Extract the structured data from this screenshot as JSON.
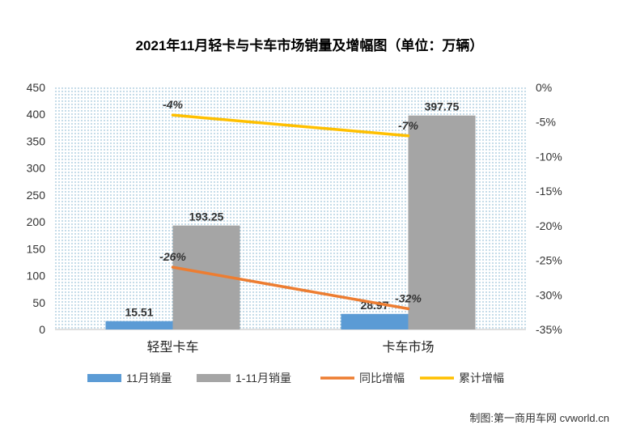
{
  "chart_data": {
    "type": "bar",
    "title": "2021年11月轻卡与卡车市场销量及增幅图（单位：万辆）",
    "categories": [
      "轻型卡车",
      "卡车市场"
    ],
    "series": [
      {
        "name": "11月销量",
        "kind": "bar",
        "axis": "left",
        "values": [
          15.51,
          28.97
        ],
        "labels": [
          "15.51",
          "28.97"
        ],
        "color": "#5B9BD5"
      },
      {
        "name": "1-11月销量",
        "kind": "bar",
        "axis": "left",
        "values": [
          193.25,
          397.75
        ],
        "labels": [
          "193.25",
          "397.75"
        ],
        "color": "#A5A5A5"
      },
      {
        "name": "同比增幅",
        "kind": "line",
        "axis": "right",
        "values": [
          -26,
          -32
        ],
        "labels": [
          "-26%",
          "-32%"
        ],
        "color": "#ED7D31"
      },
      {
        "name": "累计增幅",
        "kind": "line",
        "axis": "right",
        "values": [
          -4,
          -7
        ],
        "labels": [
          "-4%",
          "-7%"
        ],
        "color": "#FFC000"
      }
    ],
    "y_left": {
      "range": [
        0,
        450
      ],
      "ticks": [
        "0",
        "50",
        "100",
        "150",
        "200",
        "250",
        "300",
        "350",
        "400",
        "450"
      ]
    },
    "y_right": {
      "range": [
        -35,
        0
      ],
      "ticks": [
        "0%",
        "-5%",
        "-10%",
        "-15%",
        "-20%",
        "-25%",
        "-30%",
        "-35%"
      ]
    },
    "plot_background": "dotted",
    "legend_position": "bottom"
  },
  "credit": "制图:第一商用车网 cvworld.cn"
}
